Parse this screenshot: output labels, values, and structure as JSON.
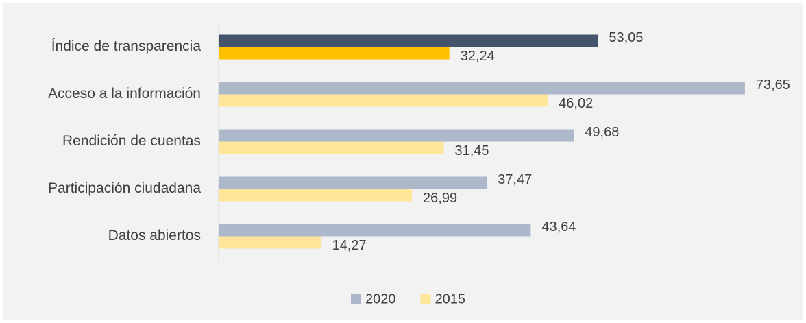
{
  "chart_data": {
    "type": "bar",
    "orientation": "horizontal",
    "categories": [
      "Índice de transparencia",
      "Acceso a la información",
      "Rendición de cuentas",
      "Participación ciudadana",
      "Datos abiertos"
    ],
    "series": [
      {
        "name": "2020",
        "color": "#adb9ca",
        "colors": [
          "#44546a",
          "#adb9ca",
          "#adb9ca",
          "#adb9ca",
          "#adb9ca"
        ],
        "values": [
          53.05,
          73.65,
          49.68,
          37.47,
          43.64
        ],
        "value_labels": [
          "53,05",
          "73,65",
          "49,68",
          "37,47",
          "43,64"
        ]
      },
      {
        "name": "2015",
        "color": "#ffe699",
        "colors": [
          "#ffc000",
          "#ffe699",
          "#ffe699",
          "#ffe699",
          "#ffe699"
        ],
        "values": [
          32.24,
          46.02,
          31.45,
          26.99,
          14.27
        ],
        "value_labels": [
          "32,24",
          "46,02",
          "31,45",
          "26,99",
          "14,27"
        ]
      }
    ],
    "xlim": [
      0,
      80
    ],
    "legend": "bottom"
  }
}
